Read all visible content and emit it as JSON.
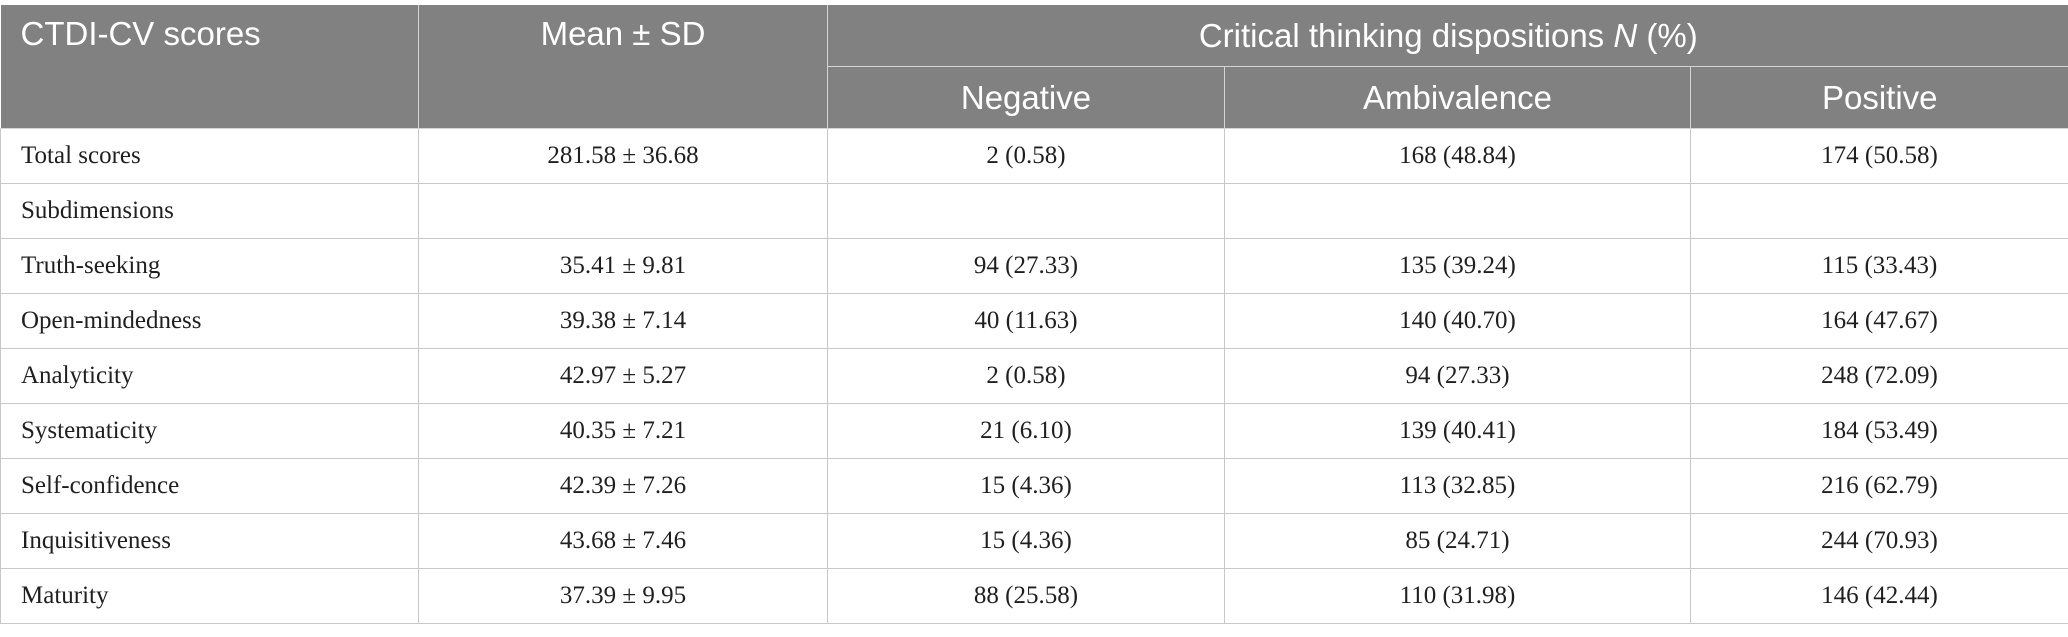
{
  "header": {
    "col1": "CTDI-CV scores",
    "col2": "Mean ± SD",
    "group_prefix": "Critical thinking dispositions ",
    "group_italic": "N",
    "group_suffix": " (%)",
    "sub1": "Negative",
    "sub2": "Ambivalence",
    "sub3": "Positive"
  },
  "rows": [
    {
      "label": "Total scores",
      "mean": "281.58 ± 36.68",
      "negative": "2 (0.58)",
      "ambivalence": "168 (48.84)",
      "positive": "174 (50.58)"
    },
    {
      "label": "Subdimensions",
      "mean": "",
      "negative": "",
      "ambivalence": "",
      "positive": ""
    },
    {
      "label": "Truth-seeking",
      "mean": "35.41 ± 9.81",
      "negative": "94 (27.33)",
      "ambivalence": "135 (39.24)",
      "positive": "115 (33.43)"
    },
    {
      "label": "Open-mindedness",
      "mean": "39.38 ± 7.14",
      "negative": "40 (11.63)",
      "ambivalence": "140 (40.70)",
      "positive": "164 (47.67)"
    },
    {
      "label": "Analyticity",
      "mean": "42.97 ± 5.27",
      "negative": "2 (0.58)",
      "ambivalence": "94 (27.33)",
      "positive": "248 (72.09)"
    },
    {
      "label": "Systematicity",
      "mean": "40.35 ± 7.21",
      "negative": "21 (6.10)",
      "ambivalence": "139 (40.41)",
      "positive": "184 (53.49)"
    },
    {
      "label": "Self-confidence",
      "mean": "42.39 ± 7.26",
      "negative": "15 (4.36)",
      "ambivalence": "113 (32.85)",
      "positive": "216 (62.79)"
    },
    {
      "label": "Inquisitiveness",
      "mean": "43.68 ± 7.46",
      "negative": "15 (4.36)",
      "ambivalence": "85 (24.71)",
      "positive": "244 (70.93)"
    },
    {
      "label": "Maturity",
      "mean": "37.39 ± 9.95",
      "negative": "88 (25.58)",
      "ambivalence": "110 (31.98)",
      "positive": "146 (42.44)"
    }
  ]
}
